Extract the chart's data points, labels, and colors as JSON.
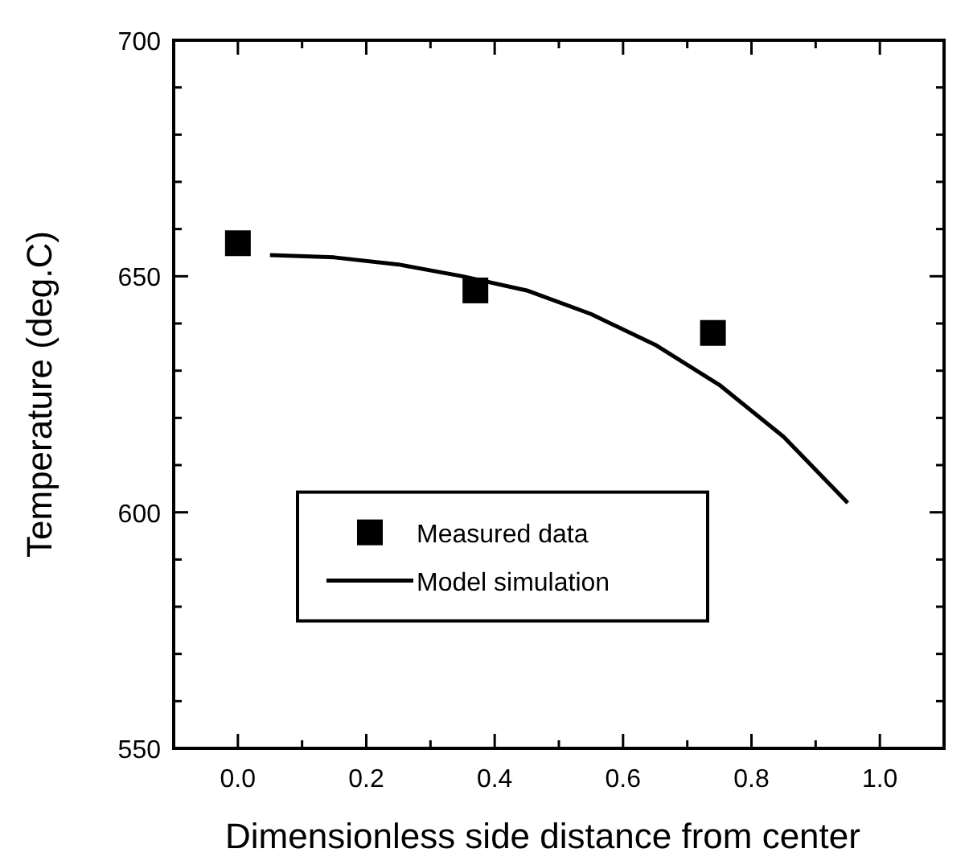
{
  "chart_data": {
    "type": "scatter",
    "xlabel": "Dimensionless side distance from center",
    "ylabel": "Temperature (deg.C)",
    "xlim": [
      -0.1,
      1.1
    ],
    "ylim": [
      550,
      700
    ],
    "xticks": [
      {
        "value": 0,
        "label": "0.0"
      },
      {
        "value": 0.1,
        "label": null
      },
      {
        "value": 0.2,
        "label": "0.2"
      },
      {
        "value": 0.3,
        "label": null
      },
      {
        "value": 0.4,
        "label": "0.4"
      },
      {
        "value": 0.5,
        "label": null
      },
      {
        "value": 0.6,
        "label": "0.6"
      },
      {
        "value": 0.7,
        "label": null
      },
      {
        "value": 0.8,
        "label": "0.8"
      },
      {
        "value": 0.9,
        "label": null
      },
      {
        "value": 1,
        "label": "1.0"
      }
    ],
    "yticks": [
      550,
      {
        "value": 560,
        "label": null
      },
      {
        "value": 570,
        "label": null
      },
      {
        "value": 580,
        "label": null
      },
      {
        "value": 590,
        "label": null
      },
      600,
      {
        "value": 610,
        "label": null
      },
      {
        "value": 620,
        "label": null
      },
      {
        "value": 630,
        "label": null
      },
      {
        "value": 640,
        "label": null
      },
      650,
      {
        "value": 660,
        "label": null
      },
      {
        "value": 670,
        "label": null
      },
      {
        "value": 680,
        "label": null
      },
      {
        "value": 690,
        "label": null
      },
      700
    ],
    "legend": "bottom",
    "grid": false,
    "series": [
      {
        "name": "Measured data",
        "marker": "square",
        "color": "#000000",
        "x": [
          0,
          0.37,
          0.74
        ],
        "values": [
          657,
          647,
          638
        ]
      },
      {
        "name": "Model simulation",
        "type": "line",
        "marker": "none",
        "line_style": "solid",
        "color": "#000000",
        "x": [
          0.05,
          0.15,
          0.25,
          0.35,
          0.45,
          0.55,
          0.65,
          0.75,
          0.85,
          0.95
        ],
        "values": [
          654.5,
          654,
          652.5,
          650,
          647,
          642,
          635.5,
          627,
          616,
          602
        ]
      }
    ]
  }
}
